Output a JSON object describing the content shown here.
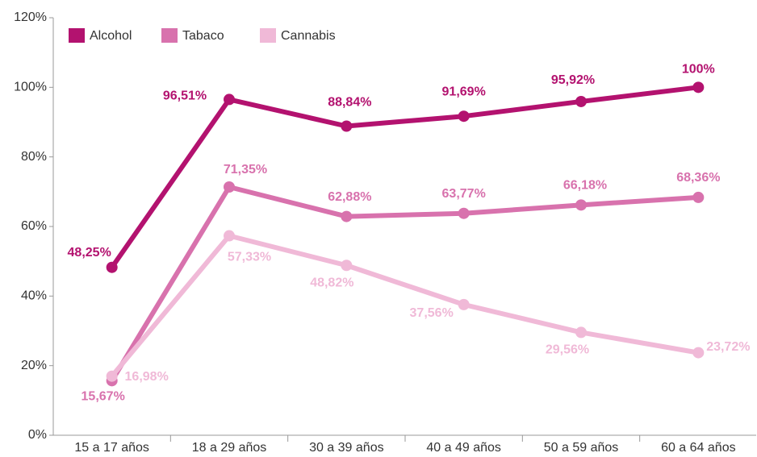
{
  "chart_data": {
    "type": "line",
    "categories": [
      "15 a 17 años",
      "18 a 29 años",
      "30 a 39 años",
      "40 a 49 años",
      "50 a 59 años",
      "60 a 64 años"
    ],
    "series": [
      {
        "name": "Alcohol",
        "color": "#b3126f",
        "values": [
          48.25,
          96.51,
          88.84,
          91.69,
          95.92,
          100
        ],
        "value_labels": [
          "48,25%",
          "96,51%",
          "88,84%",
          "91,69%",
          "95,92%",
          "100%"
        ]
      },
      {
        "name": "Tabaco",
        "color": "#d872ad",
        "values": [
          15.67,
          71.35,
          62.88,
          63.77,
          66.18,
          68.36
        ],
        "value_labels": [
          "15,67%",
          "71,35%",
          "62,88%",
          "63,77%",
          "66,18%",
          "68,36%"
        ]
      },
      {
        "name": "Cannabis",
        "color": "#f0b9d7",
        "values": [
          16.98,
          57.33,
          48.82,
          37.56,
          29.56,
          23.72
        ],
        "value_labels": [
          "16,98%",
          "57,33%",
          "48,82%",
          "37,56%",
          "29,56%",
          "23,72%"
        ]
      }
    ],
    "ylim": [
      0,
      120
    ],
    "yticks": [
      {
        "value": 0,
        "label": "0%"
      },
      {
        "value": 20,
        "label": "20%"
      },
      {
        "value": 40,
        "label": "40%"
      },
      {
        "value": 60,
        "label": "60%"
      },
      {
        "value": 80,
        "label": "80%"
      },
      {
        "value": 100,
        "label": "100%"
      },
      {
        "value": 120,
        "label": "120%"
      }
    ],
    "grid": false,
    "legend": "top-left"
  }
}
